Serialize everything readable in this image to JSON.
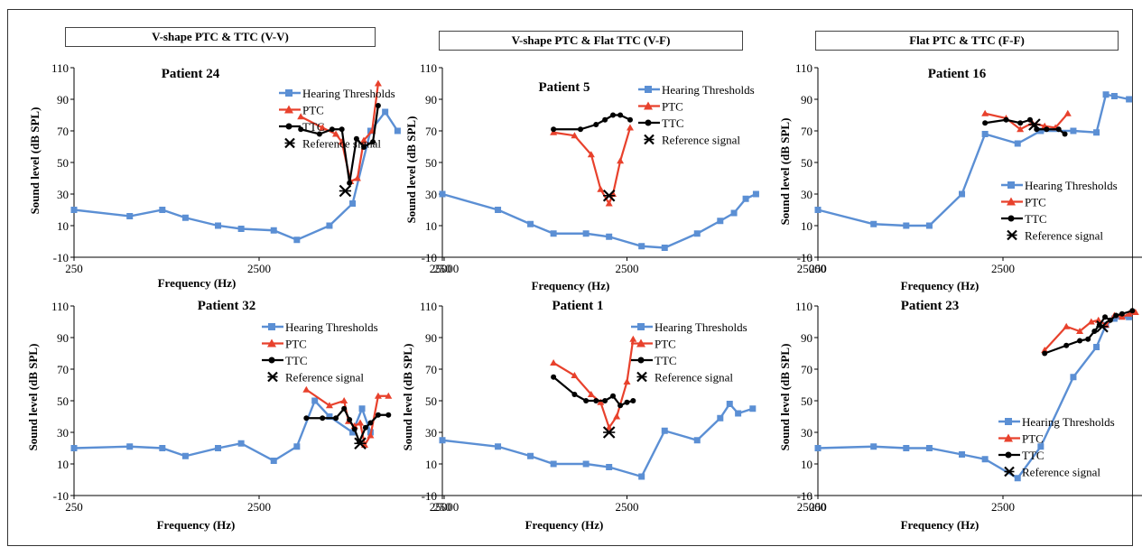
{
  "categories": [
    {
      "label": "V-shape PTC & TTC (V-V)"
    },
    {
      "label": "V-shape PTC & Flat TTC (V-F)"
    },
    {
      "label": "Flat PTC & TTC (F-F)"
    }
  ],
  "colors": {
    "hearing": "#5b8fd4",
    "ptc": "#e8412c",
    "ttc": "#000000",
    "ref": "#000000"
  },
  "legend_labels": {
    "hearing": "Hearing Thresholds",
    "ptc": "PTC",
    "ttc": "TTC",
    "ref": "Reference signal"
  },
  "chart_data": [
    {
      "type": "line",
      "title": "Patient 24",
      "xlabel": "Frequency (Hz)",
      "ylabel": "Sound level (dB SPL)",
      "x_scale": "log",
      "xlim": [
        250,
        25000
      ],
      "ylim": [
        -10,
        110
      ],
      "x_ticks": [
        "250",
        "2500",
        "25000"
      ],
      "y_ticks": [
        "-10",
        "10",
        "30",
        "50",
        "70",
        "90",
        "110"
      ],
      "legend_position": "right",
      "series": [
        {
          "name": "Hearing Thresholds",
          "x": [
            250,
            500,
            750,
            1000,
            1500,
            2000,
            3000,
            4000,
            6000,
            8000,
            10000,
            12000,
            14000
          ],
          "y": [
            20,
            16,
            20,
            15,
            10,
            8,
            7,
            1,
            10,
            24,
            70,
            82,
            70
          ]
        },
        {
          "name": "PTC",
          "x": [
            4200,
            5500,
            6500,
            7000,
            7800,
            8500,
            9200,
            10200,
            11000
          ],
          "y": [
            79,
            72,
            68,
            63,
            38,
            40,
            64,
            70,
            100
          ]
        },
        {
          "name": "TTC",
          "x": [
            4200,
            5300,
            6200,
            7000,
            7700,
            8400,
            9200,
            10300,
            11000
          ],
          "y": [
            71,
            68,
            71,
            71,
            37,
            65,
            60,
            63,
            86
          ]
        },
        {
          "name": "Reference signal",
          "x": [
            7300
          ],
          "y": [
            32
          ]
        }
      ]
    },
    {
      "type": "line",
      "title": "Patient 5",
      "xlabel": "Frequency (Hz)",
      "ylabel": "Sound level (dB SPL)",
      "x_scale": "log",
      "xlim": [
        250,
        25000
      ],
      "ylim": [
        -10,
        110
      ],
      "x_ticks": [
        "250",
        "2500",
        "25000"
      ],
      "y_ticks": [
        "-10",
        "10",
        "30",
        "50",
        "70",
        "90",
        "110"
      ],
      "legend_position": "top-right",
      "series": [
        {
          "name": "Hearing Thresholds",
          "x": [
            250,
            500,
            750,
            1000,
            1500,
            2000,
            3000,
            4000,
            6000,
            8000,
            9500,
            11000,
            12500
          ],
          "y": [
            30,
            20,
            11,
            5,
            5,
            3,
            -3,
            -4,
            5,
            13,
            18,
            27,
            30
          ]
        },
        {
          "name": "PTC",
          "x": [
            1000,
            1300,
            1600,
            1800,
            2000,
            2100,
            2300,
            2600
          ],
          "y": [
            69,
            67,
            55,
            33,
            24,
            30,
            51,
            72
          ]
        },
        {
          "name": "TTC",
          "x": [
            1000,
            1400,
            1700,
            1900,
            2100,
            2300,
            2600
          ],
          "y": [
            71,
            71,
            74,
            77,
            80,
            80,
            77
          ]
        },
        {
          "name": "Reference signal",
          "x": [
            2000
          ],
          "y": [
            29
          ]
        }
      ]
    },
    {
      "type": "line",
      "title": "Patient 16",
      "xlabel": "Frequency (Hz)",
      "ylabel": "Sound level (dB SPL)",
      "x_scale": "log",
      "xlim": [
        250,
        25000
      ],
      "ylim": [
        -10,
        110
      ],
      "x_ticks": [
        "250",
        "2500",
        "25000"
      ],
      "y_ticks": [
        "-10",
        "10",
        "30",
        "50",
        "70",
        "90",
        "110"
      ],
      "legend_position": "right",
      "series": [
        {
          "name": "Hearing Thresholds",
          "x": [
            250,
            500,
            750,
            1000,
            1500,
            2000,
            3000,
            4000,
            6000,
            8000,
            9000,
            10000,
            12000
          ],
          "y": [
            20,
            11,
            10,
            10,
            30,
            68,
            62,
            70,
            70,
            69,
            93,
            92,
            90
          ]
        },
        {
          "name": "PTC",
          "x": [
            2000,
            2600,
            3100,
            3600,
            4200,
            4800,
            5600
          ],
          "y": [
            81,
            78,
            71,
            75,
            73,
            72,
            81
          ]
        },
        {
          "name": "TTC",
          "x": [
            2000,
            2600,
            3100,
            3500,
            3800,
            4300,
            5000,
            5400
          ],
          "y": [
            75,
            77,
            75,
            77,
            71,
            71,
            71,
            68
          ]
        },
        {
          "name": "Reference signal",
          "x": [
            3700
          ],
          "y": [
            74
          ]
        }
      ]
    },
    {
      "type": "line",
      "title": "Patient 32",
      "xlabel": "Frequency (Hz)",
      "ylabel": "Sound level (dB SPL)",
      "x_scale": "log",
      "xlim": [
        250,
        25000
      ],
      "ylim": [
        -10,
        110
      ],
      "x_ticks": [
        "250",
        "2500",
        "25000"
      ],
      "y_ticks": [
        "-10",
        "10",
        "30",
        "50",
        "70",
        "90",
        "110"
      ],
      "legend_position": "top-right",
      "series": [
        {
          "name": "Hearing Thresholds",
          "x": [
            250,
            500,
            750,
            1000,
            1500,
            2000,
            3000,
            4000,
            5000,
            6000,
            8000,
            9000,
            10000
          ],
          "y": [
            20,
            21,
            20,
            15,
            20,
            23,
            12,
            21,
            50,
            40,
            30,
            45,
            30
          ]
        },
        {
          "name": "PTC",
          "x": [
            4500,
            6000,
            7200,
            7600,
            8200,
            8800,
            9300,
            10000,
            11000,
            12500
          ],
          "y": [
            57,
            47,
            50,
            37,
            34,
            36,
            22,
            28,
            53,
            53
          ]
        },
        {
          "name": "TTC",
          "x": [
            4500,
            5500,
            6500,
            7200,
            7700,
            8200,
            8700,
            9400,
            10000,
            11000,
            12500
          ],
          "y": [
            39,
            39,
            39,
            45,
            38,
            32,
            24,
            33,
            36,
            41,
            41
          ]
        },
        {
          "name": "Reference signal",
          "x": [
            8800
          ],
          "y": [
            23
          ]
        }
      ]
    },
    {
      "type": "line",
      "title": "Patient 1",
      "xlabel": "Frequency (Hz)",
      "ylabel": "Sound level (dB SPL)",
      "x_scale": "log",
      "xlim": [
        250,
        25000
      ],
      "ylim": [
        -10,
        110
      ],
      "x_ticks": [
        "250",
        "2500",
        "25000"
      ],
      "y_ticks": [
        "-10",
        "10",
        "30",
        "50",
        "70",
        "90",
        "110"
      ],
      "legend_position": "top-right",
      "series": [
        {
          "name": "Hearing Thresholds",
          "x": [
            250,
            500,
            750,
            1000,
            1500,
            2000,
            3000,
            4000,
            6000,
            8000,
            9000,
            10000,
            12000
          ],
          "y": [
            25,
            21,
            15,
            10,
            10,
            8,
            2,
            31,
            25,
            39,
            48,
            42,
            45
          ]
        },
        {
          "name": "PTC",
          "x": [
            1000,
            1300,
            1600,
            1800,
            2000,
            2200,
            2500,
            2700
          ],
          "y": [
            74,
            66,
            54,
            49,
            33,
            40,
            62,
            89
          ]
        },
        {
          "name": "TTC",
          "x": [
            1000,
            1300,
            1500,
            1700,
            1900,
            2100,
            2300,
            2500,
            2700
          ],
          "y": [
            65,
            54,
            50,
            50,
            50,
            53,
            47,
            49,
            50
          ]
        },
        {
          "name": "Reference signal",
          "x": [
            2000
          ],
          "y": [
            30
          ]
        }
      ]
    },
    {
      "type": "line",
      "title": "Patient 23",
      "xlabel": "Frequency (Hz)",
      "ylabel": "Sound level (dB SPL)",
      "x_scale": "log",
      "xlim": [
        250,
        25000
      ],
      "ylim": [
        -10,
        110
      ],
      "x_ticks": [
        "250",
        "2500",
        "25000"
      ],
      "y_ticks": [
        "-10",
        "10",
        "30",
        "50",
        "70",
        "90",
        "110"
      ],
      "legend_position": "bottom-right",
      "series": [
        {
          "name": "Hearing Thresholds",
          "x": [
            250,
            500,
            750,
            1000,
            1500,
            2000,
            3000,
            4000,
            6000,
            8000,
            9000,
            10000,
            12000
          ],
          "y": [
            20,
            21,
            20,
            20,
            16,
            13,
            1,
            21,
            65,
            84,
            98,
            102,
            103
          ]
        },
        {
          "name": "PTC",
          "x": [
            4200,
            5500,
            6500,
            7500,
            8200,
            9000,
            10000,
            11000,
            12000,
            13000
          ],
          "y": [
            82,
            97,
            94,
            100,
            101,
            98,
            104,
            103,
            105,
            106
          ]
        },
        {
          "name": "TTC",
          "x": [
            4200,
            5500,
            6500,
            7200,
            7800,
            8300,
            8900,
            9500,
            10200,
            11000,
            12500
          ],
          "y": [
            80,
            85,
            88,
            89,
            94,
            98,
            103,
            101,
            104,
            105,
            107
          ]
        },
        {
          "name": "Reference signal",
          "x": [
            8600
          ],
          "y": [
            97
          ]
        }
      ]
    }
  ]
}
